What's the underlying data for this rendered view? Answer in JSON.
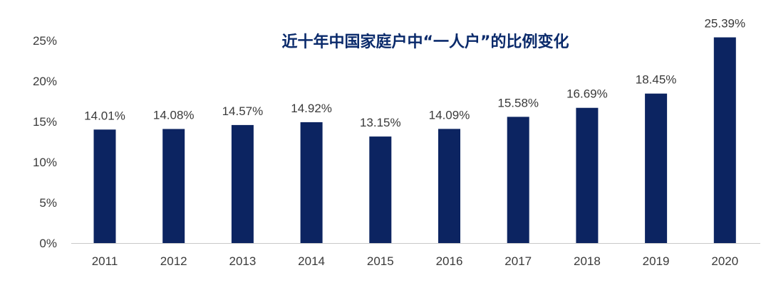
{
  "chart_data": {
    "type": "bar",
    "title": "近十年中国家庭户中“一人户”的比例变化",
    "categories": [
      "2011",
      "2012",
      "2013",
      "2014",
      "2015",
      "2016",
      "2017",
      "2018",
      "2019",
      "2020"
    ],
    "values": [
      14.01,
      14.08,
      14.57,
      14.92,
      13.15,
      14.09,
      15.58,
      16.69,
      18.45,
      25.39
    ],
    "data_labels": [
      "14.01%",
      "14.08%",
      "14.57%",
      "14.92%",
      "13.15%",
      "14.09%",
      "15.58%",
      "16.69%",
      "18.45%",
      "25.39%"
    ],
    "y_ticks": [
      0,
      5,
      10,
      15,
      20,
      25
    ],
    "y_tick_labels": [
      "0%",
      "5%",
      "10%",
      "15%",
      "20%",
      "25%"
    ],
    "ylim": [
      0,
      25
    ],
    "grid": false,
    "bar_color": "#0c2461",
    "axis_color": "#c8c8c8",
    "title_color": "#0a2a6b"
  }
}
